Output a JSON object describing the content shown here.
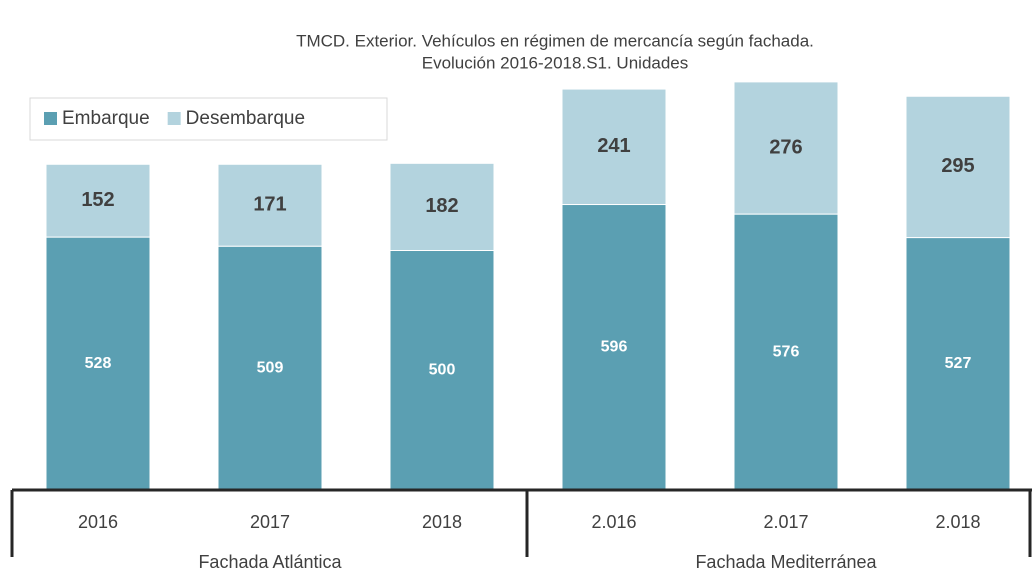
{
  "chart_data": {
    "type": "stacked_bar",
    "title": [
      "TMCD. Exterior. Vehículos en régimen de mercancía según fachada.",
      "Evolución 2016-2018.S1. Unidades"
    ],
    "groups": [
      {
        "name": "Fachada Atlántica",
        "categories": [
          "2016",
          "2017",
          "2018"
        ]
      },
      {
        "name": "Fachada Mediterránea",
        "categories": [
          "2.016",
          "2.017",
          "2.018"
        ]
      }
    ],
    "series": [
      {
        "name": "Embarque",
        "color": "#5b9fb2",
        "values": [
          528,
          509,
          500,
          596,
          576,
          527
        ]
      },
      {
        "name": "Desembarque",
        "color": "#b3d3de",
        "values": [
          152,
          171,
          182,
          241,
          276,
          295
        ]
      }
    ],
    "legend": "top-left"
  }
}
